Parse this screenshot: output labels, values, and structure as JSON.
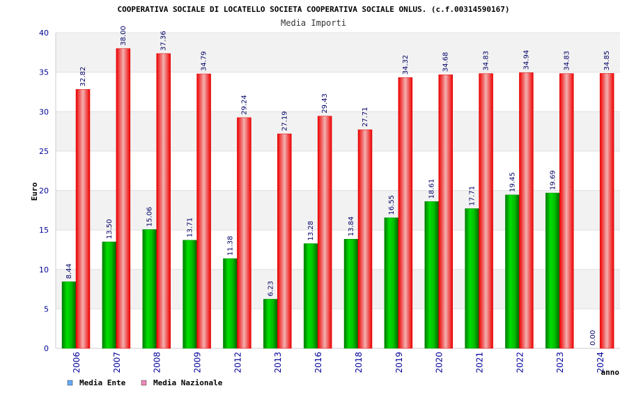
{
  "chart_data": {
    "type": "bar",
    "title": "COOPERATIVA SOCIALE DI LOCATELLO SOCIETA COOPERATIVA SOCIALE ONLUS. (c.f.00314590167)",
    "subtitle": "Media Importi",
    "ylabel": "Euro",
    "xlabel": "anno",
    "ylim": [
      0,
      40
    ],
    "yticks": [
      0,
      5,
      10,
      15,
      20,
      25,
      30,
      35,
      40
    ],
    "categories": [
      "2006",
      "2007",
      "2008",
      "2009",
      "2012",
      "2013",
      "2016",
      "2018",
      "2019",
      "2020",
      "2021",
      "2022",
      "2023",
      "2024"
    ],
    "series": [
      {
        "name": "Media Ente",
        "color": "#00aa00",
        "legend_color": "#66aaff",
        "values": [
          8.44,
          13.5,
          15.06,
          13.71,
          11.38,
          6.23,
          13.28,
          13.84,
          16.55,
          18.61,
          17.71,
          19.45,
          19.69,
          0.0
        ],
        "labels": [
          "8.44",
          "13.50",
          "15.06",
          "13.71",
          "11.38",
          "6.23",
          "13.28",
          "13.84",
          "16.55",
          "18.61",
          "17.71",
          "19.45",
          "19.69",
          "0.00"
        ]
      },
      {
        "name": "Media Nazionale",
        "color": "#ee0000",
        "legend_color": "#ee88bb",
        "values": [
          32.82,
          38.0,
          37.36,
          34.79,
          29.24,
          27.19,
          29.43,
          27.71,
          34.32,
          34.68,
          34.83,
          34.94,
          34.83,
          34.85
        ],
        "labels": [
          "32.82",
          "38.00",
          "37.36",
          "34.79",
          "29.24",
          "27.19",
          "29.43",
          "27.71",
          "34.32",
          "34.68",
          "34.83",
          "34.94",
          "34.83",
          "34.85"
        ]
      }
    ],
    "grid": true,
    "legend_position": "bottom-left"
  }
}
